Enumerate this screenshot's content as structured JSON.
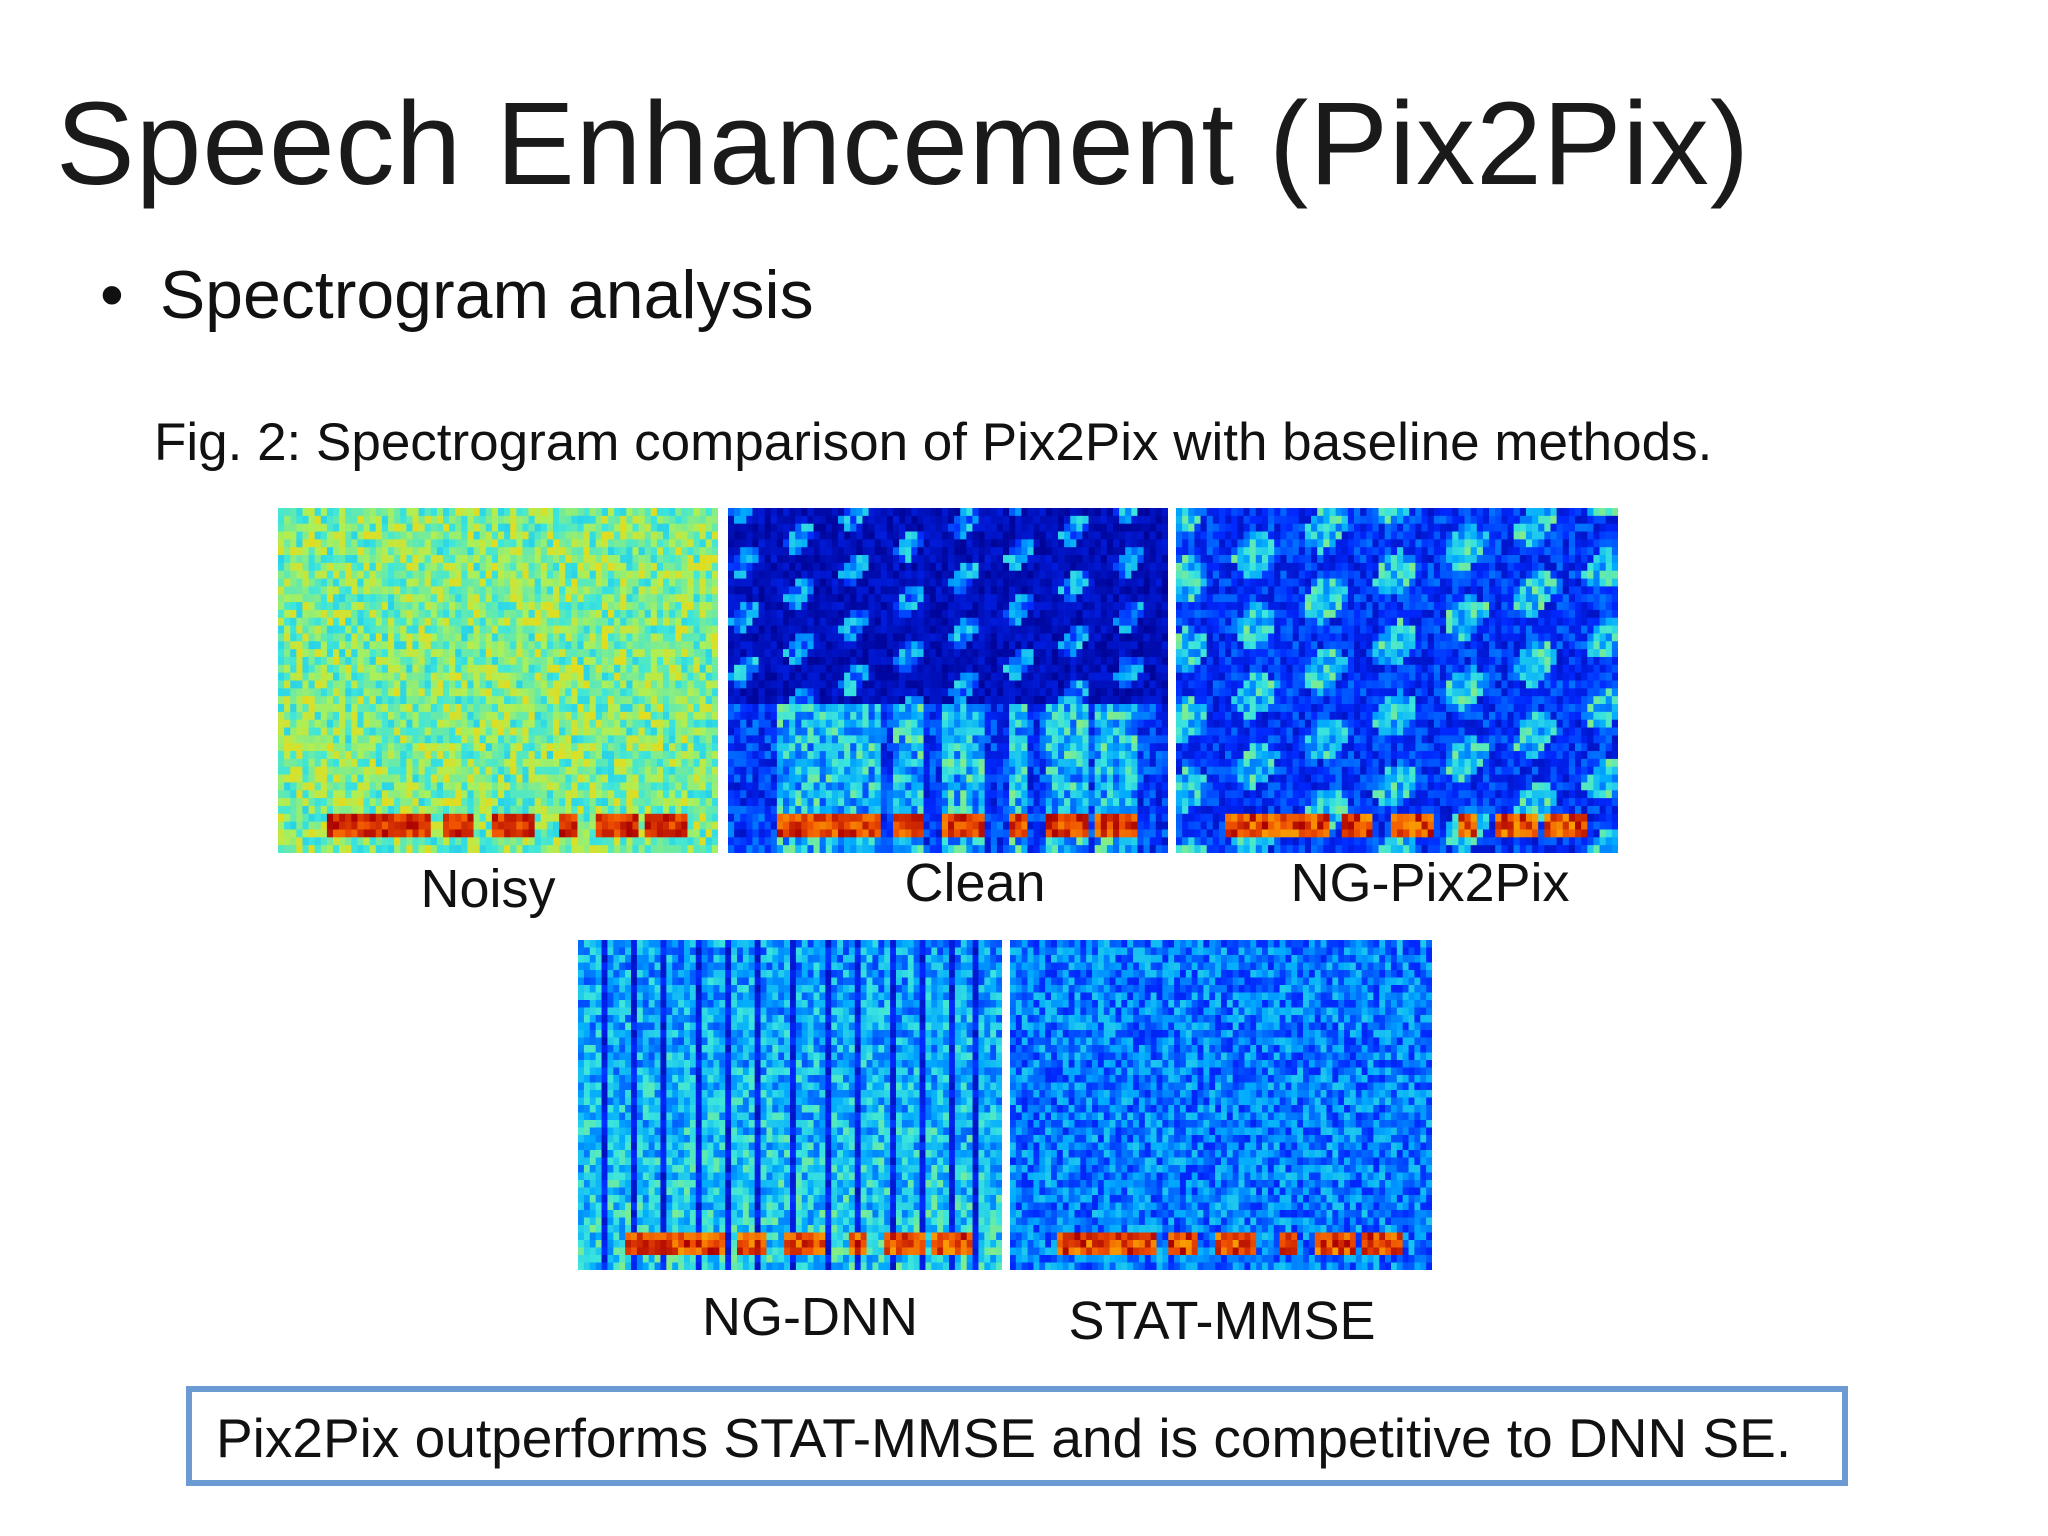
{
  "slide": {
    "title": "Speech Enhancement (Pix2Pix)",
    "bullet": "Spectrogram analysis",
    "bullet_marker": "•",
    "caption": "Fig. 2: Spectrogram comparison of Pix2Pix with baseline methods.",
    "callout": "Pix2Pix outperforms STAT-MMSE and is competitive to DNN SE."
  },
  "spectrograms": [
    {
      "label": "Noisy",
      "style": "noisy"
    },
    {
      "label": "Clean",
      "style": "clean"
    },
    {
      "label": "NG-Pix2Pix",
      "style": "pix2pix"
    },
    {
      "label": "NG-DNN",
      "style": "dnn"
    },
    {
      "label": "STAT-MMSE",
      "style": "mmse"
    }
  ],
  "colors": {
    "jet_dark_blue": "#00008f",
    "jet_blue": "#0060ff",
    "jet_cyan": "#30d0ff",
    "jet_green": "#90f070",
    "jet_red": "#d82000",
    "callout_border": "#6b9bd2"
  }
}
